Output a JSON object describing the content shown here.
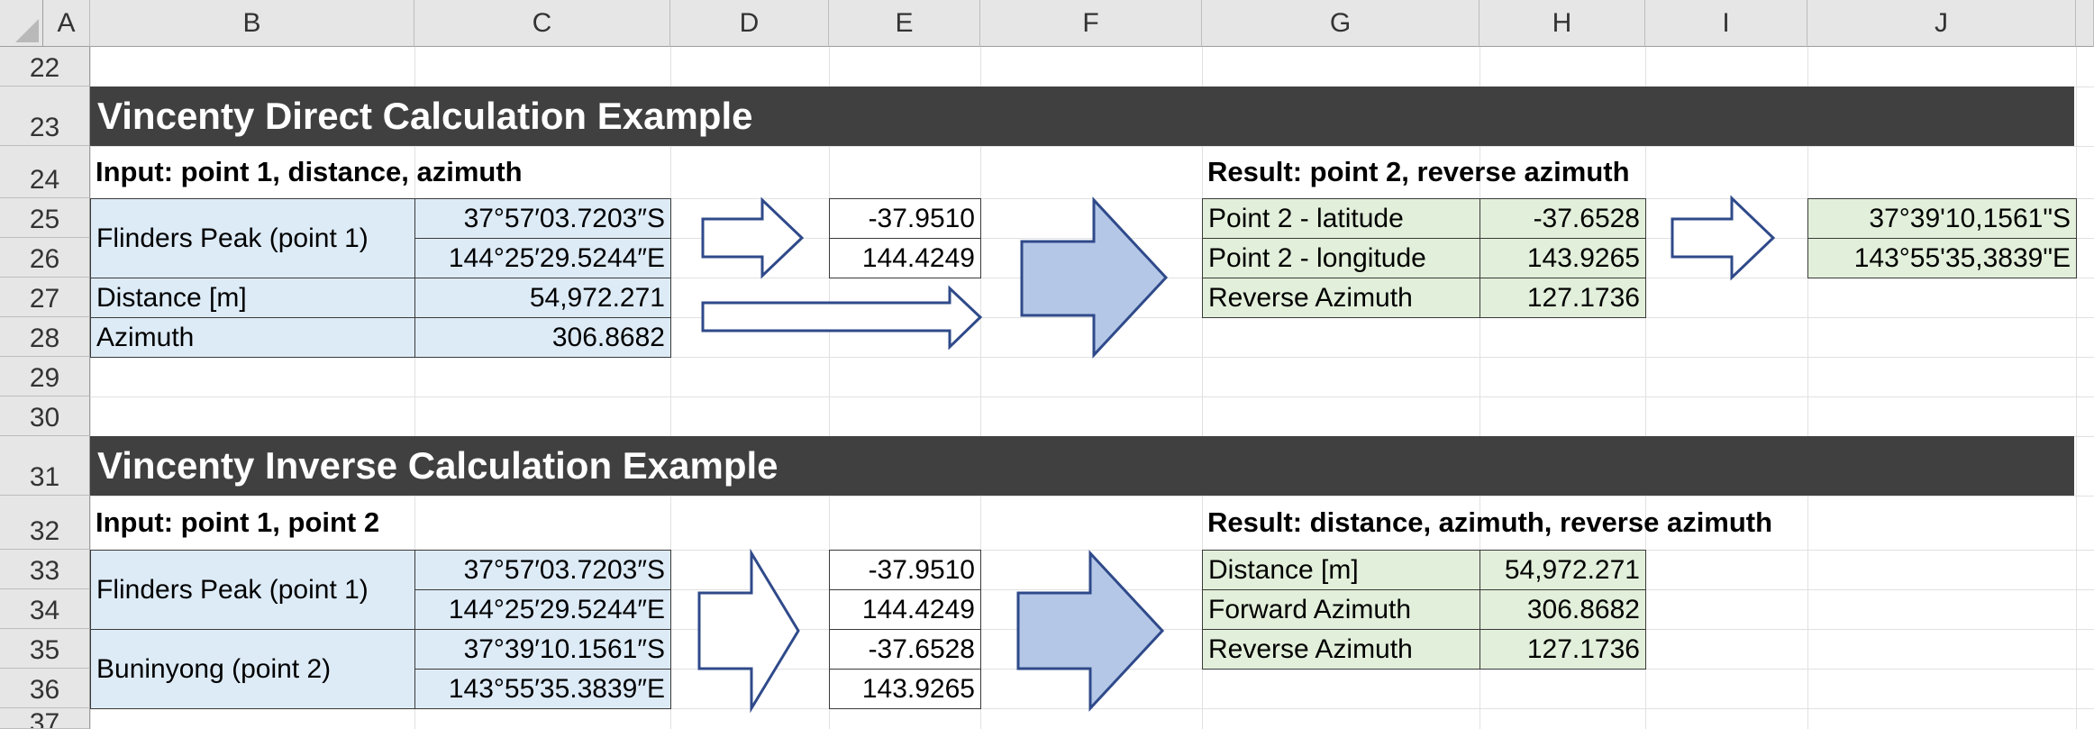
{
  "columns": [
    "A",
    "B",
    "C",
    "D",
    "E",
    "F",
    "G",
    "H",
    "I",
    "J"
  ],
  "rows": [
    "22",
    "23",
    "24",
    "25",
    "26",
    "27",
    "28",
    "29",
    "30",
    "31",
    "32",
    "33",
    "34",
    "35",
    "36",
    "37"
  ],
  "colors": {
    "banner_bg": "#404040",
    "input_fill": "#ddebf7",
    "result_fill": "#e2efda",
    "arrow_stroke": "#2f4a8a",
    "big_arrow_fill": "#b4c7e7"
  },
  "direct": {
    "title": "Vincenty Direct Calculation Example",
    "input_heading": "Input: point 1, distance, azimuth",
    "result_heading": "Result: point 2, reverse azimuth",
    "point1_label": "Flinders Peak (point 1)",
    "point1_lat": "37°57′03.7203″S",
    "point1_lon": "144°25′29.5244″E",
    "distance_label": "Distance [m]",
    "distance_value": "54,972.271",
    "azimuth_label": "Azimuth",
    "azimuth_value": "306.8682",
    "dec_lat": "-37.9510",
    "dec_lon": "144.4249",
    "results": [
      {
        "label": "Point 2 - latitude",
        "value": "-37.6528"
      },
      {
        "label": "Point 2 - longitude",
        "value": "143.9265"
      },
      {
        "label": "Reverse Azimuth",
        "value": "127.1736"
      }
    ],
    "dms_lat": "37°39'10,1561\"S",
    "dms_lon": "143°55'35,3839\"E"
  },
  "inverse": {
    "title": "Vincenty Inverse Calculation Example",
    "input_heading": "Input: point 1, point 2",
    "result_heading": "Result: distance, azimuth, reverse azimuth",
    "point1_label": "Flinders Peak (point 1)",
    "point1_lat": "37°57′03.7203″S",
    "point1_lon": "144°25′29.5244″E",
    "point2_label": "Buninyong (point 2)",
    "point2_lat": "37°39′10.1561″S",
    "point2_lon": "143°55′35.3839″E",
    "decimals": [
      "-37.9510",
      "144.4249",
      "-37.6528",
      "143.9265"
    ],
    "results": [
      {
        "label": "Distance [m]",
        "value": "54,972.271"
      },
      {
        "label": "Forward Azimuth",
        "value": "306.8682"
      },
      {
        "label": "Reverse Azimuth",
        "value": "127.1736"
      }
    ]
  }
}
